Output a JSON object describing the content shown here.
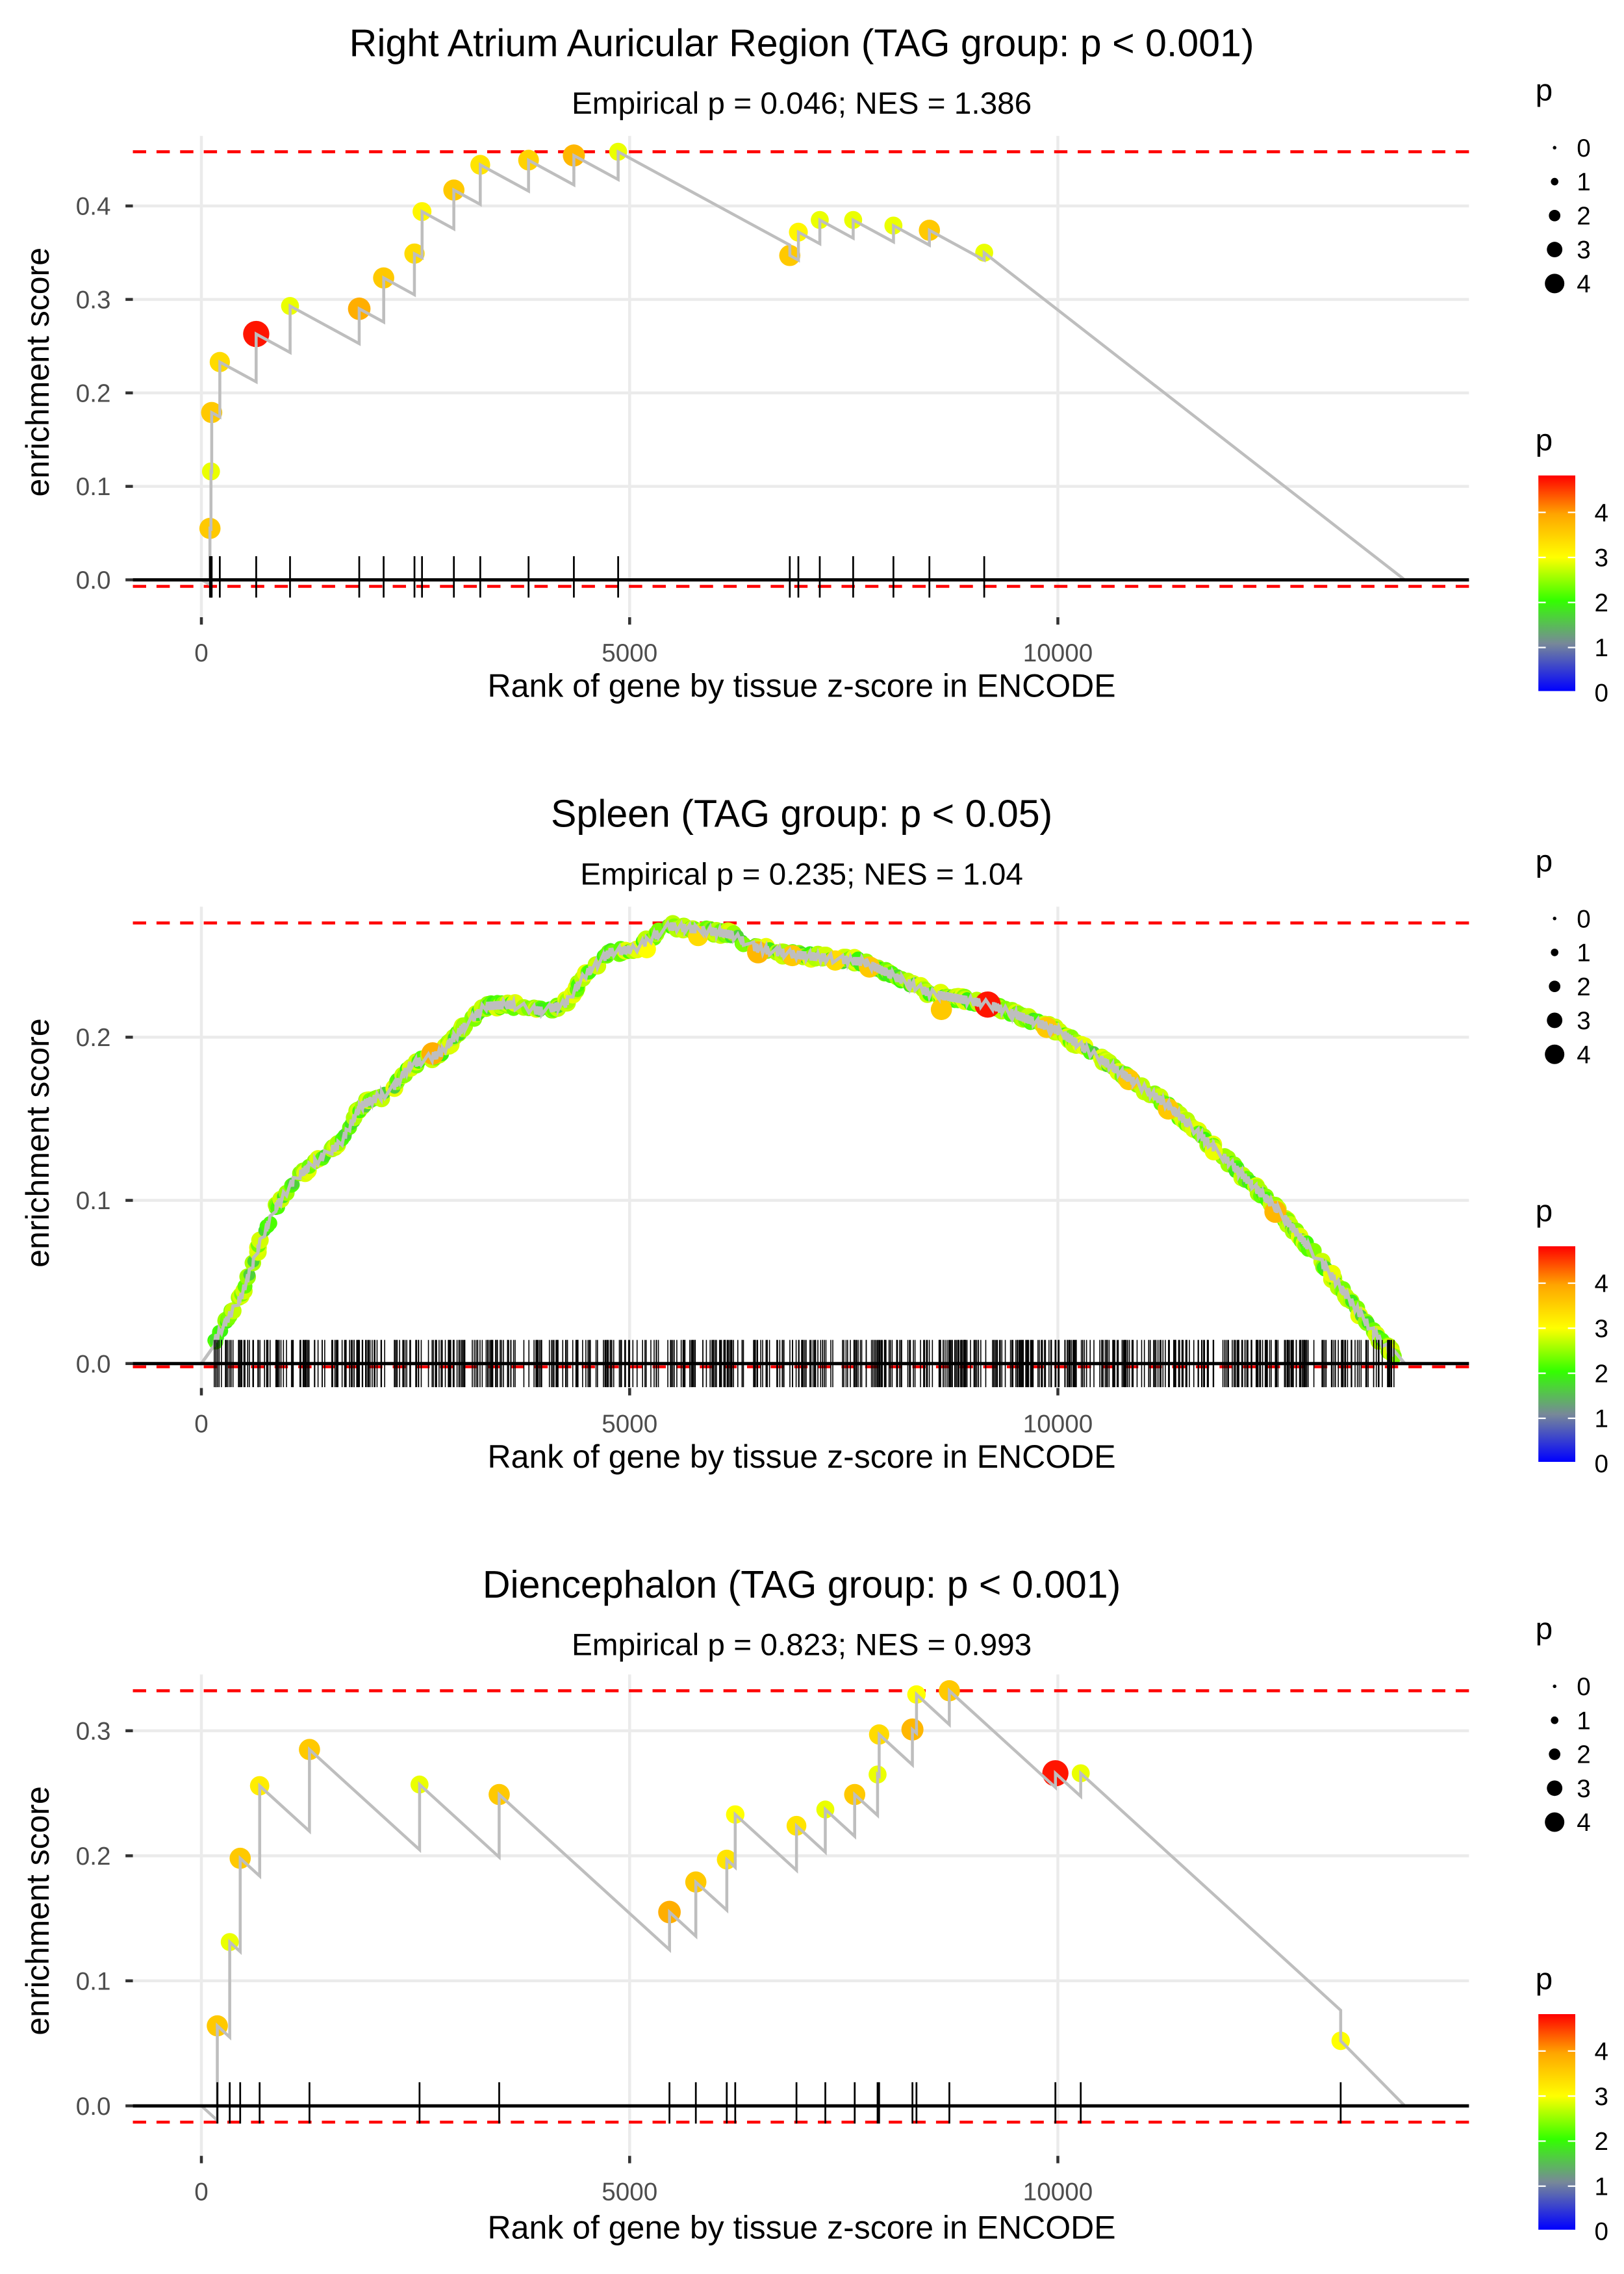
{
  "chart_data": [
    {
      "type": "line",
      "title": "Right Atrium Auricular Region (TAG group: p < 0.001)",
      "subtitle": "Empirical p = 0.046; NES = 1.386",
      "xlabel": "Rank of gene by tissue z-score in ENCODE",
      "ylabel": "enrichment score",
      "xlim": [
        -800,
        14800
      ],
      "ylim": [
        -0.04,
        0.475
      ],
      "x_ticks": [
        0,
        5000,
        10000
      ],
      "x_tick_labels": [
        "0",
        "5000",
        "10000"
      ],
      "y_ticks": [
        0.0,
        0.1,
        0.2,
        0.3,
        0.4
      ],
      "y_tick_labels": [
        "0.0",
        "0.1",
        "0.2",
        "0.3",
        "0.4"
      ],
      "n_genes": 14050,
      "max_es": 0.458,
      "min_es": -0.007,
      "grid": true,
      "legend": "right",
      "hits": [
        {
          "rank": 100,
          "es": 0.055,
          "p": 3.6
        },
        {
          "rank": 112,
          "es": 0.116,
          "p": 2.9
        },
        {
          "rank": 120,
          "es": 0.179,
          "p": 3.6
        },
        {
          "rank": 215,
          "es": 0.233,
          "p": 3.4
        },
        {
          "rank": 640,
          "es": 0.263,
          "p": 4.7
        },
        {
          "rank": 1035,
          "es": 0.293,
          "p": 2.9
        },
        {
          "rank": 1843,
          "es": 0.29,
          "p": 3.9
        },
        {
          "rank": 2128,
          "es": 0.323,
          "p": 3.6
        },
        {
          "rank": 2488,
          "es": 0.349,
          "p": 3.4
        },
        {
          "rank": 2576,
          "es": 0.394,
          "p": 3.1
        },
        {
          "rank": 2948,
          "es": 0.417,
          "p": 3.6
        },
        {
          "rank": 3256,
          "es": 0.444,
          "p": 3.3
        },
        {
          "rank": 3820,
          "es": 0.449,
          "p": 3.5
        },
        {
          "rank": 4349,
          "es": 0.454,
          "p": 3.8
        },
        {
          "rank": 4866,
          "es": 0.458,
          "p": 2.9
        },
        {
          "rank": 6870,
          "es": 0.347,
          "p": 3.6
        },
        {
          "rank": 6970,
          "es": 0.372,
          "p": 3.1
        },
        {
          "rank": 7220,
          "es": 0.385,
          "p": 2.9
        },
        {
          "rank": 7610,
          "es": 0.385,
          "p": 2.9
        },
        {
          "rank": 8080,
          "es": 0.379,
          "p": 2.9
        },
        {
          "rank": 8500,
          "es": 0.374,
          "p": 3.6
        },
        {
          "rank": 9140,
          "es": 0.35,
          "p": 2.9
        }
      ]
    },
    {
      "type": "line",
      "title": "Spleen (TAG group: p < 0.05)",
      "subtitle": "Empirical p = 0.235; NES = 1.04",
      "xlabel": "Rank of gene by tissue z-score in ENCODE",
      "ylabel": "enrichment score",
      "xlim": [
        -800,
        14800
      ],
      "ylim": [
        -0.015,
        0.28
      ],
      "x_ticks": [
        0,
        5000,
        10000
      ],
      "x_tick_labels": [
        "0",
        "5000",
        "10000"
      ],
      "y_ticks": [
        0.0,
        0.1,
        0.2
      ],
      "y_tick_labels": [
        "0.0",
        "0.1",
        "0.2"
      ],
      "n_genes": 14050,
      "max_es": 0.27,
      "min_es": -0.002,
      "grid": true,
      "legend": "right",
      "dense_hits": true,
      "n_rug_hits": 700,
      "curve": [
        [
          0,
          0.0
        ],
        [
          233,
          0.021
        ],
        [
          465,
          0.041
        ],
        [
          698,
          0.076
        ],
        [
          872,
          0.096
        ],
        [
          1105,
          0.114
        ],
        [
          1395,
          0.126
        ],
        [
          1628,
          0.135
        ],
        [
          1860,
          0.158
        ],
        [
          2209,
          0.167
        ],
        [
          2442,
          0.183
        ],
        [
          2791,
          0.19
        ],
        [
          3023,
          0.204
        ],
        [
          3314,
          0.219
        ],
        [
          3605,
          0.22
        ],
        [
          3953,
          0.216
        ],
        [
          4244,
          0.22
        ],
        [
          4477,
          0.238
        ],
        [
          4767,
          0.252
        ],
        [
          5058,
          0.254
        ],
        [
          5465,
          0.268
        ],
        [
          5930,
          0.265
        ],
        [
          6174,
          0.263
        ],
        [
          6512,
          0.254
        ],
        [
          6872,
          0.251
        ],
        [
          7744,
          0.246
        ],
        [
          8500,
          0.227
        ],
        [
          9198,
          0.22
        ],
        [
          10000,
          0.204
        ],
        [
          10826,
          0.175
        ],
        [
          11290,
          0.158
        ],
        [
          11988,
          0.124
        ],
        [
          12570,
          0.094
        ],
        [
          13151,
          0.057
        ],
        [
          13733,
          0.016
        ],
        [
          14023,
          0.0
        ]
      ],
      "highlight_hits": [
        {
          "rank": 2700,
          "es": 0.19,
          "p": 3.9
        },
        {
          "rank": 5200,
          "es": 0.254,
          "p": 3.0
        },
        {
          "rank": 5800,
          "es": 0.262,
          "p": 3.4
        },
        {
          "rank": 6500,
          "es": 0.252,
          "p": 3.8
        },
        {
          "rank": 6900,
          "es": 0.25,
          "p": 3.6
        },
        {
          "rank": 7400,
          "es": 0.247,
          "p": 3.4
        },
        {
          "rank": 7800,
          "es": 0.243,
          "p": 3.6
        },
        {
          "rank": 8640,
          "es": 0.217,
          "p": 3.6
        },
        {
          "rank": 9180,
          "es": 0.22,
          "p": 4.7
        },
        {
          "rank": 9870,
          "es": 0.206,
          "p": 3.6
        },
        {
          "rank": 10830,
          "es": 0.174,
          "p": 3.6
        },
        {
          "rank": 11290,
          "es": 0.156,
          "p": 3.6
        },
        {
          "rank": 11820,
          "es": 0.13,
          "p": 2.9
        },
        {
          "rank": 12540,
          "es": 0.093,
          "p": 3.8
        },
        {
          "rank": 13200,
          "es": 0.055,
          "p": 2.9
        }
      ]
    },
    {
      "type": "line",
      "title": "Diencephalon (TAG group: p < 0.001)",
      "subtitle": "Empirical p = 0.823; NES = 0.993",
      "xlabel": "Rank of gene by tissue z-score in ENCODE",
      "ylabel": "enrichment score",
      "xlim": [
        -800,
        14800
      ],
      "ylim": [
        -0.04,
        0.345
      ],
      "x_ticks": [
        0,
        5000,
        10000
      ],
      "x_tick_labels": [
        "0",
        "5000",
        "10000"
      ],
      "y_ticks": [
        0.0,
        0.1,
        0.2,
        0.3
      ],
      "y_tick_labels": [
        "0.0",
        "0.1",
        "0.2",
        "0.3"
      ],
      "n_genes": 14050,
      "max_es": 0.332,
      "min_es": -0.013,
      "grid": true,
      "legend": "right",
      "hits": [
        {
          "rank": 186,
          "es": 0.064,
          "p": 3.6
        },
        {
          "rank": 331,
          "es": 0.131,
          "p": 2.9
        },
        {
          "rank": 453,
          "es": 0.198,
          "p": 3.6
        },
        {
          "rank": 680,
          "es": 0.256,
          "p": 3.2
        },
        {
          "rank": 1262,
          "es": 0.285,
          "p": 3.6
        },
        {
          "rank": 2547,
          "es": 0.257,
          "p": 2.9
        },
        {
          "rank": 3477,
          "es": 0.249,
          "p": 3.6
        },
        {
          "rank": 5465,
          "es": 0.155,
          "p": 3.9
        },
        {
          "rank": 5773,
          "es": 0.179,
          "p": 3.6
        },
        {
          "rank": 6134,
          "es": 0.197,
          "p": 3.3
        },
        {
          "rank": 6233,
          "es": 0.233,
          "p": 3.0
        },
        {
          "rank": 6948,
          "es": 0.224,
          "p": 3.3
        },
        {
          "rank": 7285,
          "es": 0.237,
          "p": 2.9
        },
        {
          "rank": 7628,
          "es": 0.249,
          "p": 3.6
        },
        {
          "rank": 7895,
          "es": 0.265,
          "p": 2.9
        },
        {
          "rank": 7913,
          "es": 0.297,
          "p": 3.4
        },
        {
          "rank": 8302,
          "es": 0.301,
          "p": 3.8
        },
        {
          "rank": 8349,
          "es": 0.329,
          "p": 3.0
        },
        {
          "rank": 8733,
          "es": 0.332,
          "p": 3.6
        },
        {
          "rank": 9971,
          "es": 0.266,
          "p": 4.7
        },
        {
          "rank": 10267,
          "es": 0.266,
          "p": 2.9
        },
        {
          "rank": 13302,
          "es": 0.052,
          "p": 3.0
        }
      ]
    }
  ],
  "legend": {
    "size_title": "p",
    "size_labels": [
      "0",
      "1",
      "2",
      "3",
      "4"
    ],
    "color_title": "p",
    "color_labels": [
      "4",
      "3",
      "2",
      "1",
      "0"
    ],
    "color_stops": [
      "#0000ff",
      "#777799",
      "#33ff00",
      "#ffff00",
      "#ffa500",
      "#ff0000"
    ]
  },
  "colors": {
    "max_min_line": "#ff0000",
    "es_path": "#bebebe",
    "grid": "#ebebeb",
    "zero_line": "#000000",
    "rug": "#000000"
  }
}
